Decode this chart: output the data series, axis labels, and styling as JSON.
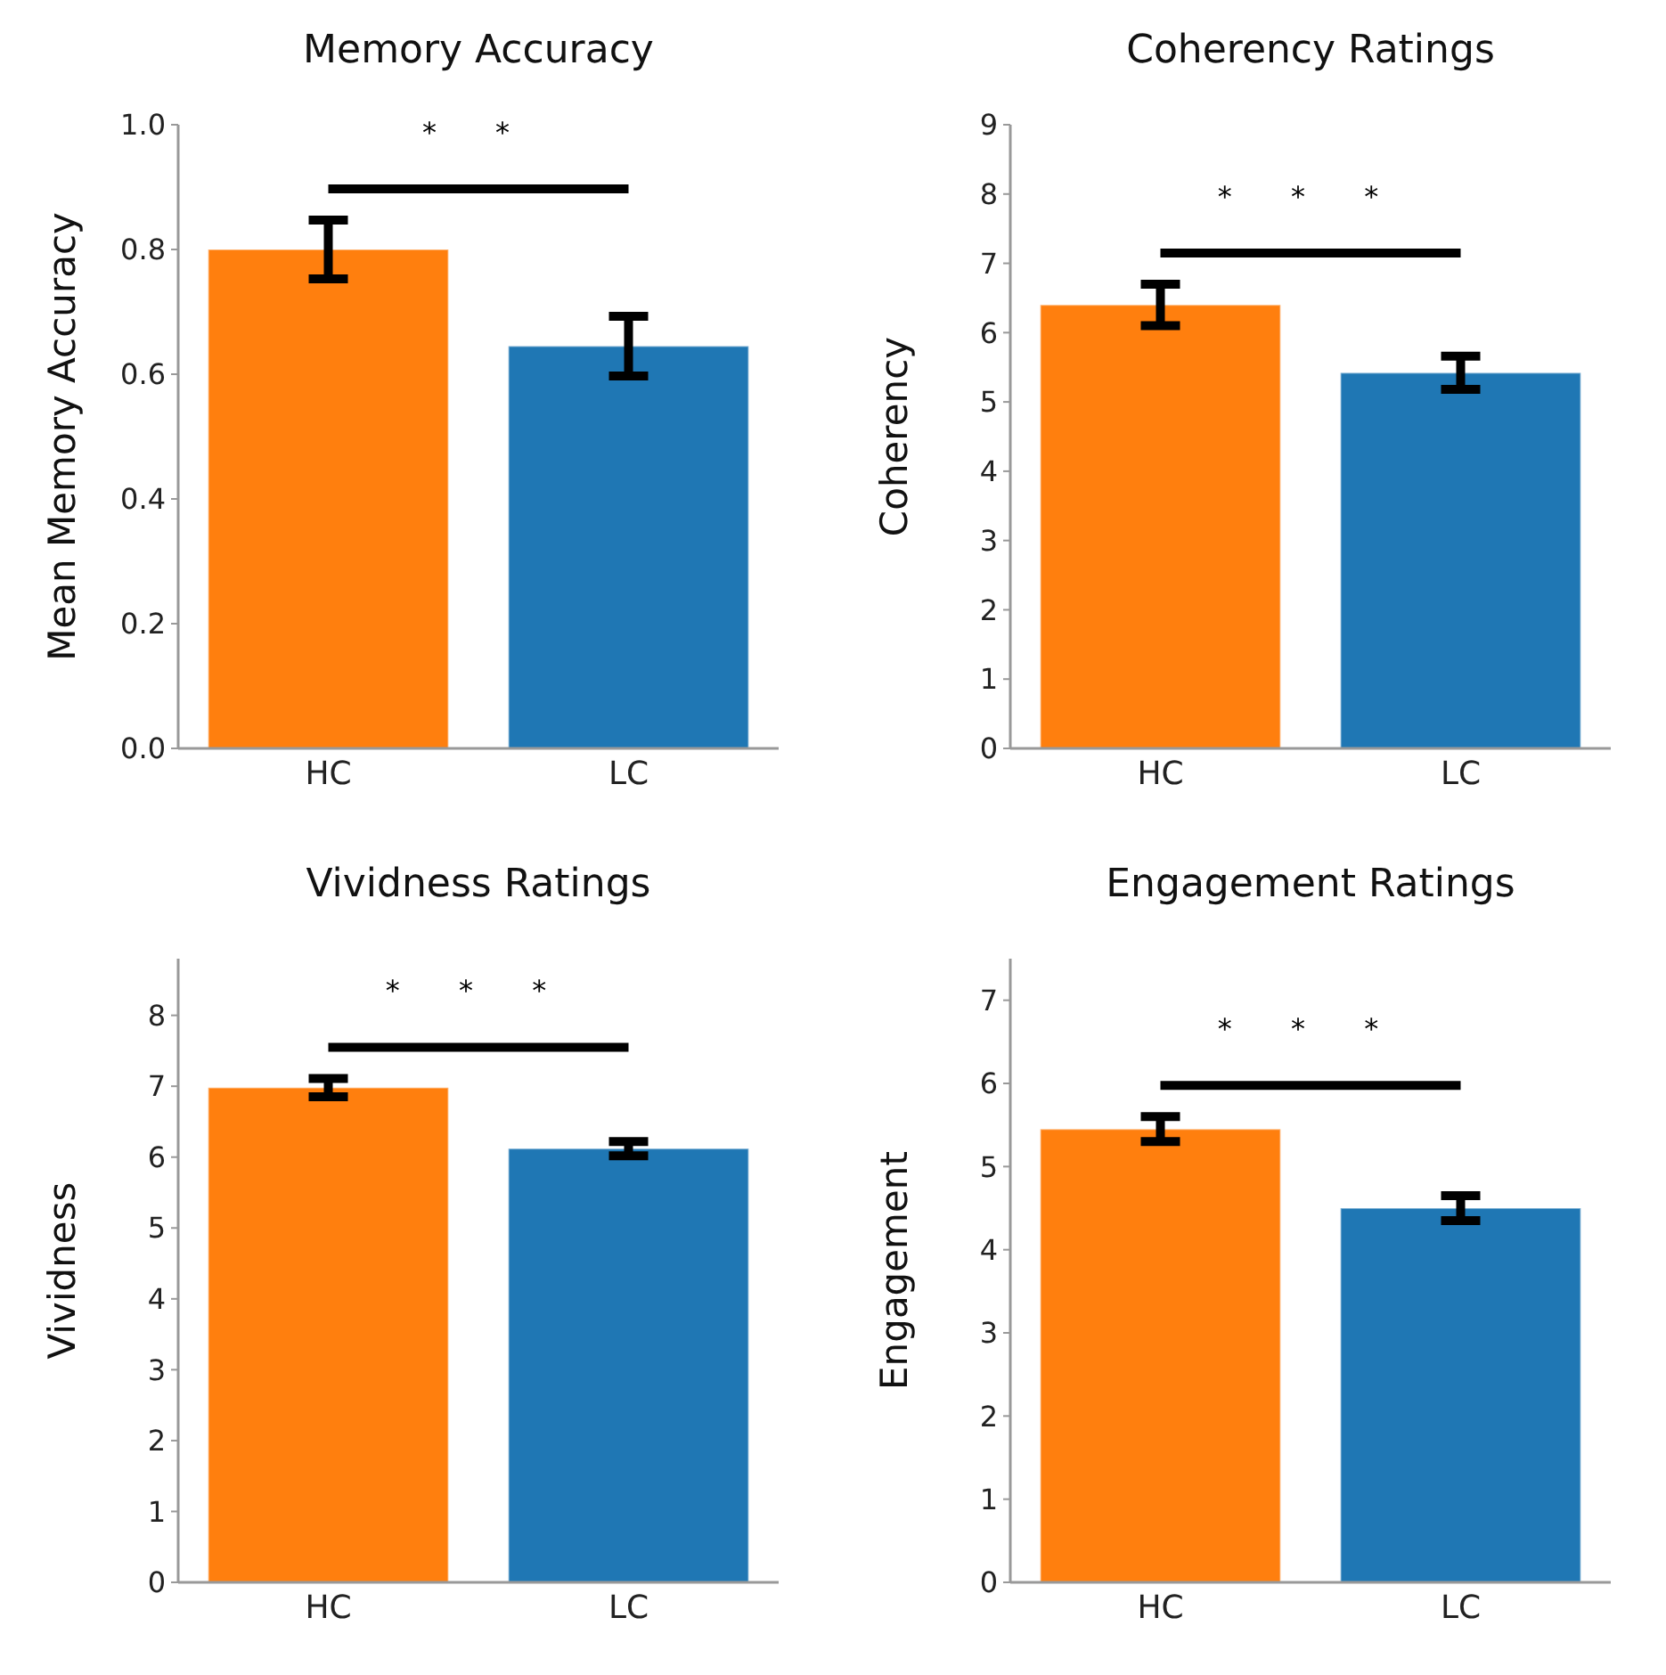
{
  "chart_data": [
    {
      "type": "bar",
      "title": "Memory Accuracy",
      "ylabel": "Mean Memory Accuracy",
      "categories": [
        "HC",
        "LC"
      ],
      "values": [
        0.8,
        0.645
      ],
      "errors": [
        0.047,
        0.048
      ],
      "colors": [
        "#ff7f0e",
        "#1f77b4"
      ],
      "ylim": [
        0,
        1.0
      ],
      "yticks": [
        {
          "value": 0,
          "label": "0.0"
        },
        0.2,
        0.4,
        0.6,
        0.8,
        {
          "value": 1,
          "label": "1.0"
        }
      ],
      "annotations": [
        "* *"
      ],
      "grid": false
    },
    {
      "type": "bar",
      "title": "Coherency Ratings",
      "ylabel": "Coherency",
      "categories": [
        "HC",
        "LC"
      ],
      "values": [
        6.4,
        5.42
      ],
      "errors": [
        0.3,
        0.24
      ],
      "colors": [
        "#ff7f0e",
        "#1f77b4"
      ],
      "ylim": [
        0,
        9
      ],
      "yticks": [
        0,
        1,
        2,
        3,
        4,
        5,
        6,
        7,
        8,
        9
      ],
      "annotations": [
        "* * *"
      ],
      "grid": false
    },
    {
      "type": "bar",
      "title": "Vividness Ratings",
      "ylabel": "Vividness",
      "categories": [
        "HC",
        "LC"
      ],
      "values": [
        6.98,
        6.12
      ],
      "errors": [
        0.13,
        0.1
      ],
      "colors": [
        "#ff7f0e",
        "#1f77b4"
      ],
      "ylim": [
        0,
        8.8
      ],
      "yticks": [
        0,
        1,
        2,
        3,
        4,
        5,
        6,
        7,
        8
      ],
      "annotations": [
        "* * *"
      ],
      "grid": false
    },
    {
      "type": "bar",
      "title": "Engagement Ratings",
      "ylabel": "Engagement",
      "categories": [
        "HC",
        "LC"
      ],
      "values": [
        5.45,
        4.5
      ],
      "errors": [
        0.15,
        0.15
      ],
      "colors": [
        "#ff7f0e",
        "#1f77b4"
      ],
      "ylim": [
        0,
        7.5
      ],
      "yticks": [
        0,
        1,
        2,
        3,
        4,
        5,
        6,
        7
      ],
      "annotations": [
        "* * *"
      ],
      "grid": false
    }
  ]
}
